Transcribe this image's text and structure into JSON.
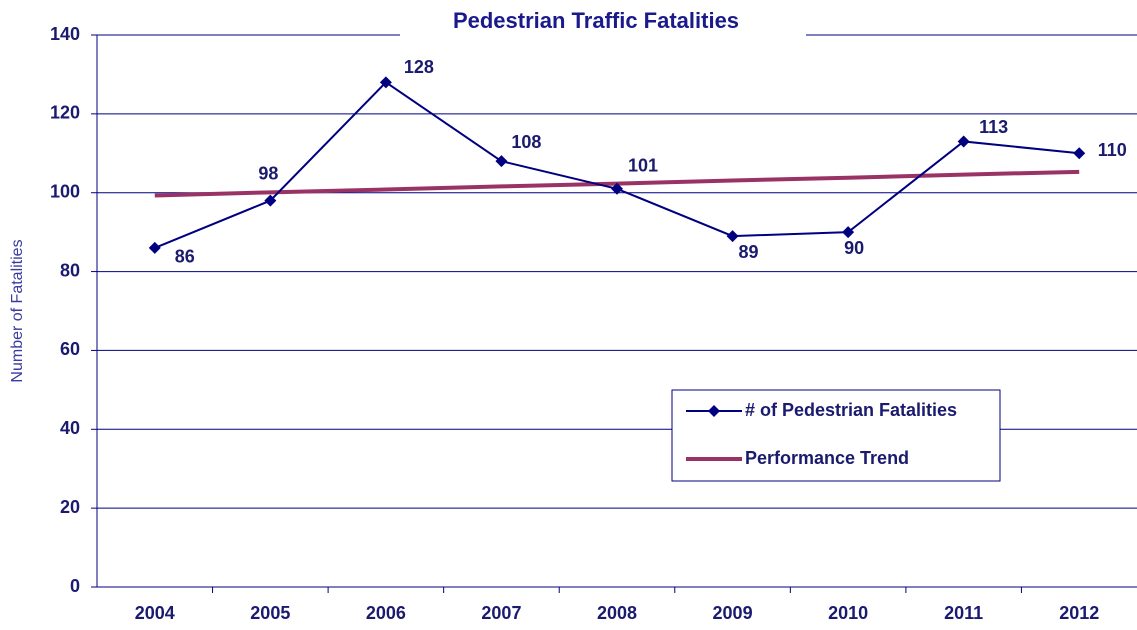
{
  "chart_data": {
    "type": "line",
    "title": "Pedestrian Traffic Fatalities",
    "y_label": "Number of Fatalities",
    "categories": [
      "2004",
      "2005",
      "2006",
      "2007",
      "2008",
      "2009",
      "2010",
      "2011",
      "2012"
    ],
    "series": [
      {
        "name": "# of Pedestrian Fatalities",
        "color": "#000080",
        "marker": "diamond",
        "data_labels": true,
        "values": [
          86,
          98,
          128,
          108,
          101,
          89,
          90,
          113,
          110
        ]
      },
      {
        "name": "Performance Trend",
        "color": "#993366",
        "marker": "none",
        "data_labels": false,
        "values": [
          99.3,
          100.1,
          100.8,
          101.6,
          102.3,
          103.1,
          103.8,
          104.6,
          105.3
        ]
      }
    ],
    "ylim": [
      0,
      140
    ],
    "yticks": [
      0,
      20,
      40,
      60,
      80,
      100,
      120,
      140
    ],
    "grid": true
  }
}
